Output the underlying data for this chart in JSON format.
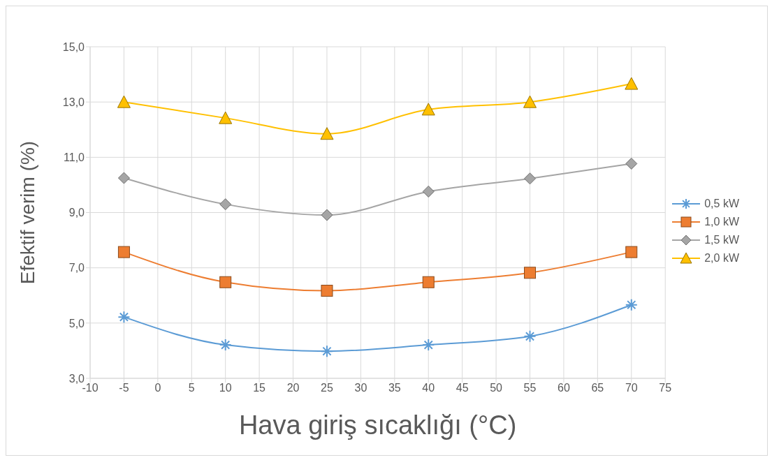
{
  "chart_data": {
    "type": "line",
    "xlabel": "Hava giriş sıcaklığı (°C)",
    "ylabel": "Efektif verim (%)",
    "x": [
      -5,
      10,
      25,
      40,
      55,
      70
    ],
    "xlim": [
      -10,
      75
    ],
    "xticks": [
      -10,
      -5,
      0,
      5,
      10,
      15,
      20,
      25,
      30,
      35,
      40,
      45,
      50,
      55,
      60,
      65,
      70,
      75
    ],
    "ylim": [
      3,
      15
    ],
    "yticks": [
      {
        "value": 3,
        "label": "3,0"
      },
      {
        "value": 5,
        "label": "5,0"
      },
      {
        "value": 7,
        "label": "7,0"
      },
      {
        "value": 9,
        "label": "9,0"
      },
      {
        "value": 11,
        "label": "11,0"
      },
      {
        "value": 13,
        "label": "13,0"
      },
      {
        "value": 15,
        "label": "15,0"
      }
    ],
    "grid": true,
    "legend": "right",
    "series": [
      {
        "name": "0,5 kW",
        "color": "#5b9bd5",
        "marker": "cross",
        "values": [
          5.22,
          4.21,
          3.98,
          4.21,
          4.52,
          5.66
        ]
      },
      {
        "name": "1,0 kW",
        "color": "#ed7d31",
        "marker": "square",
        "values": [
          7.57,
          6.48,
          6.17,
          6.48,
          6.82,
          7.57
        ]
      },
      {
        "name": "1,5 kW",
        "color": "#a5a5a5",
        "marker": "diamond",
        "values": [
          10.25,
          9.3,
          8.91,
          9.76,
          10.23,
          10.77
        ]
      },
      {
        "name": "2,0 kW",
        "color": "#ffc000",
        "marker": "triangle",
        "values": [
          13.0,
          12.42,
          11.85,
          12.73,
          13.0,
          13.66
        ]
      }
    ]
  }
}
